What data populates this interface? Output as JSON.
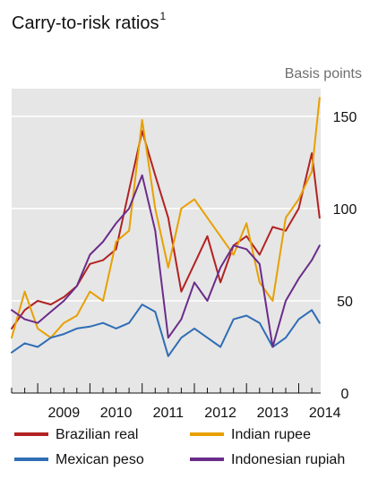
{
  "chart_data": {
    "type": "line",
    "title": "Carry-to-risk ratios",
    "title_footnote": "1",
    "unit_label": "Basis points",
    "x_ticks": [
      "2009",
      "2010",
      "2011",
      "2012",
      "2013",
      "2014"
    ],
    "y_ticks": [
      "0",
      "50",
      "100",
      "150"
    ],
    "ylim": [
      0,
      165
    ],
    "xlim": [
      2008.5,
      2014.42
    ],
    "plot_background": "#e6e6e6",
    "grid": "horizontal",
    "legend_position": "bottom",
    "x": [
      2008.5,
      2008.75,
      2009.0,
      2009.25,
      2009.5,
      2009.75,
      2010.0,
      2010.25,
      2010.5,
      2010.75,
      2011.0,
      2011.25,
      2011.5,
      2011.75,
      2012.0,
      2012.25,
      2012.5,
      2012.75,
      2013.0,
      2013.25,
      2013.5,
      2013.75,
      2014.0,
      2014.25,
      2014.4
    ],
    "series": [
      {
        "name": "Brazilian real",
        "color": "#b22222",
        "values": [
          35,
          45,
          50,
          48,
          52,
          58,
          70,
          72,
          78,
          110,
          142,
          118,
          95,
          55,
          70,
          85,
          60,
          80,
          85,
          75,
          90,
          88,
          100,
          130,
          95
        ]
      },
      {
        "name": "Indian rupee",
        "color": "#e8a000",
        "values": [
          30,
          55,
          35,
          30,
          38,
          42,
          55,
          50,
          82,
          88,
          148,
          100,
          68,
          100,
          105,
          95,
          85,
          75,
          92,
          60,
          50,
          95,
          105,
          120,
          160
        ]
      },
      {
        "name": "Mexican peso",
        "color": "#2f6db5",
        "values": [
          22,
          27,
          25,
          30,
          32,
          35,
          36,
          38,
          35,
          38,
          48,
          44,
          20,
          30,
          35,
          30,
          25,
          40,
          42,
          38,
          25,
          30,
          40,
          45,
          38
        ]
      },
      {
        "name": "Indonesian rupiah",
        "color": "#6a2c8a",
        "values": [
          45,
          40,
          38,
          44,
          50,
          58,
          75,
          82,
          92,
          100,
          118,
          88,
          30,
          40,
          60,
          50,
          68,
          80,
          78,
          70,
          25,
          50,
          62,
          72,
          80
        ]
      }
    ]
  }
}
